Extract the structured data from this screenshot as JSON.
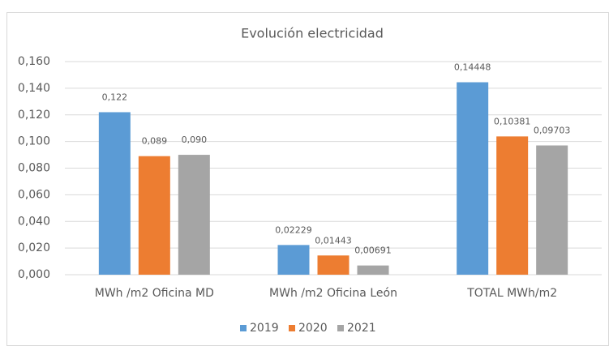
{
  "chart_data": {
    "type": "bar",
    "title": "Evolución electricidad",
    "categories": [
      "MWh /m2 Oficina MD",
      "MWh /m2 Oficina León",
      "TOTAL  MWh/m2"
    ],
    "series": [
      {
        "name": "2019",
        "color": "#5b9bd5",
        "values": [
          0.122,
          0.02229,
          0.14448
        ],
        "value_labels": [
          "0,122",
          "0,02229",
          "0,14448"
        ]
      },
      {
        "name": "2020",
        "color": "#ed7d31",
        "values": [
          0.089,
          0.01443,
          0.10381
        ],
        "value_labels": [
          "0,089",
          "0,01443",
          "0,10381"
        ]
      },
      {
        "name": "2021",
        "color": "#a5a5a5",
        "values": [
          0.09,
          0.00691,
          0.09703
        ],
        "value_labels": [
          "0,090",
          "0,00691",
          "0,09703"
        ]
      }
    ],
    "ylim": [
      0,
      0.16
    ],
    "yticks": [
      {
        "value": 0,
        "label": "0,000"
      },
      {
        "value": 0.02,
        "label": "0,020"
      },
      {
        "value": 0.04,
        "label": "0,040"
      },
      {
        "value": 0.06,
        "label": "0,060"
      },
      {
        "value": 0.08,
        "label": "0,080"
      },
      {
        "value": 0.1,
        "label": "0,100"
      },
      {
        "value": 0.12,
        "label": "0,120"
      },
      {
        "value": 0.14,
        "label": "0,140"
      },
      {
        "value": 0.16,
        "label": "0,160"
      }
    ],
    "grid": true,
    "legend": "bottom"
  }
}
